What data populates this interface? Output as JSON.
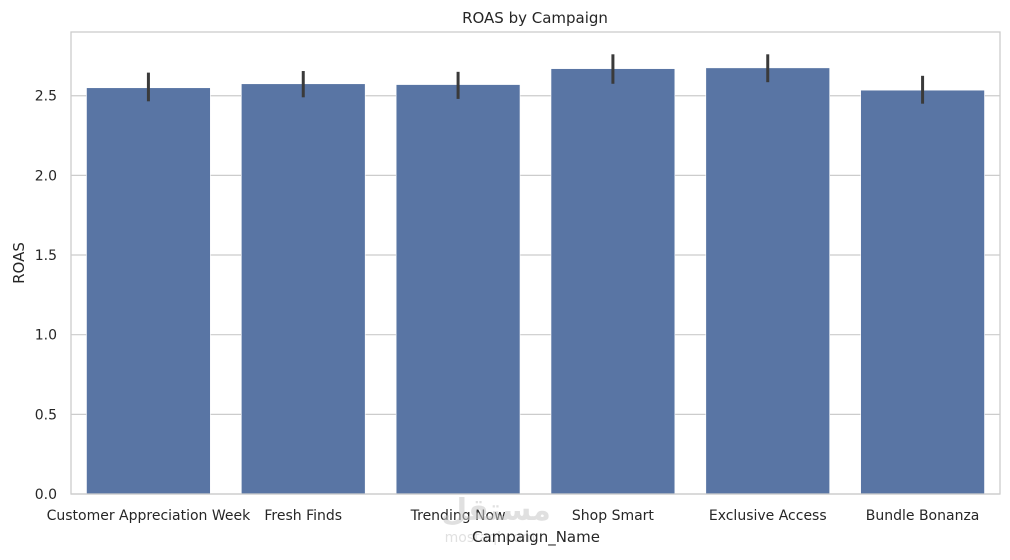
{
  "chart_data": {
    "type": "bar",
    "title": "ROAS by Campaign",
    "xlabel": "Campaign_Name",
    "ylabel": "ROAS",
    "categories": [
      "Customer Appreciation Week",
      "Fresh Finds",
      "Trending Now",
      "Shop Smart",
      "Exclusive Access",
      "Bundle Bonanza"
    ],
    "values": [
      2.55,
      2.575,
      2.57,
      2.67,
      2.675,
      2.535
    ],
    "error_low": [
      2.465,
      2.49,
      2.48,
      2.575,
      2.585,
      2.45
    ],
    "error_high": [
      2.645,
      2.655,
      2.65,
      2.76,
      2.76,
      2.625
    ],
    "ylim": [
      0,
      2.9
    ],
    "yticks": [
      0.0,
      0.5,
      1.0,
      1.5,
      2.0,
      2.5
    ],
    "ytick_labels": [
      "0.0",
      "0.5",
      "1.0",
      "1.5",
      "2.0",
      "2.5"
    ],
    "grid": "horizontal",
    "bar_color": "#5975a4",
    "error_color": "#3a3a3a",
    "grid_color": "#cccccc",
    "spine_color": "#cccccc"
  },
  "watermark": {
    "text_top": "مستقل",
    "text_bottom": "mostaql.com"
  }
}
